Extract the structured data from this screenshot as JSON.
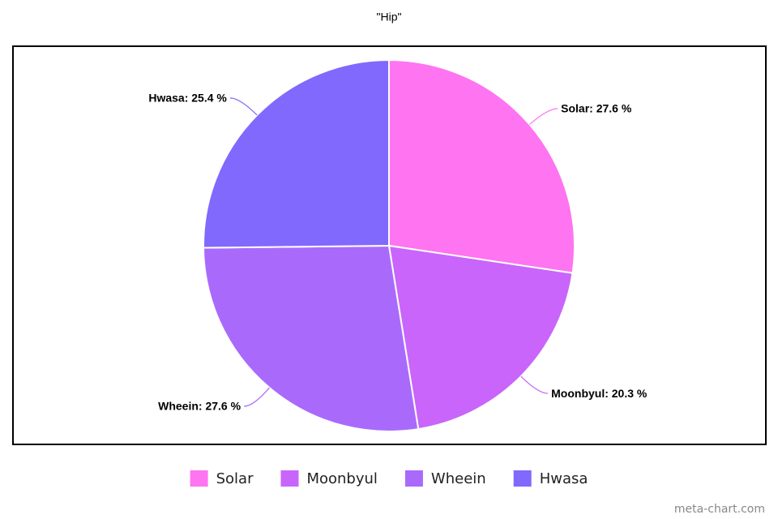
{
  "chart_data": {
    "type": "pie",
    "title": "\"Hip\"",
    "categories": [
      "Solar",
      "Moonbyul",
      "Wheein",
      "Hwasa"
    ],
    "values": [
      27.6,
      20.3,
      27.6,
      25.4
    ],
    "value_labels": [
      "Solar: 27.6 %",
      "Moonbyul: 20.3 %",
      "Wheein: 27.6 %",
      "Hwasa: 25.4 %"
    ],
    "colors": [
      "#fe74f1",
      "#c965fb",
      "#a96afc",
      "#8069fc"
    ],
    "legend": "bottom",
    "credit": "meta-chart.com"
  }
}
